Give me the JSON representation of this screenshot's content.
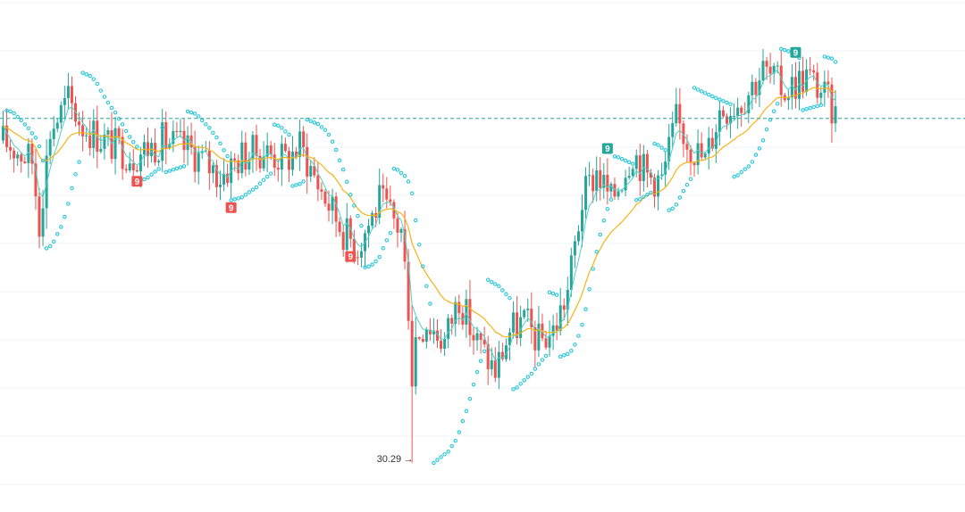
{
  "chart_data": {
    "type": "candlestick",
    "title": "",
    "xlabel": "",
    "ylabel": "",
    "ylim": [
      29.8,
      34.9
    ],
    "grid": true,
    "legend": "none",
    "current_price": 33.72,
    "low_marker": {
      "value": "30.29",
      "arrow": "→",
      "index": 113
    },
    "indicators": [
      "moving-average-fast",
      "moving-average-slow",
      "parabolic-sar",
      "td-sequential-9"
    ],
    "signals": [
      {
        "index": 37,
        "label": "9",
        "kind": "sell"
      },
      {
        "index": 63,
        "label": "9",
        "kind": "sell"
      },
      {
        "index": 96,
        "label": "9",
        "kind": "sell"
      },
      {
        "index": 167,
        "label": "9",
        "kind": "buy"
      },
      {
        "index": 219,
        "label": "9",
        "kind": "buy"
      }
    ],
    "colors": {
      "up": "#26a69a",
      "down": "#ef5350",
      "ma_fast": "#4dd0c4",
      "ma_slow": "#f5b316",
      "sar": "#26c6da",
      "price_line": "#26a69a",
      "grid": "#f0f3f6"
    }
  }
}
